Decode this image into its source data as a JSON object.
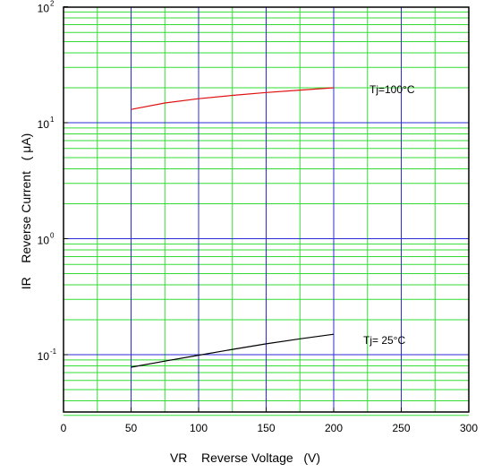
{
  "chart_data": {
    "type": "line",
    "title": "",
    "xlabel": "VR    Reverse Voltage   (V)",
    "ylabel": "IR    Reverse Current   ( μA)",
    "xlim": [
      0,
      300
    ],
    "ylim": [
      0.03,
      100
    ],
    "yscale": "log",
    "grid": true,
    "xticks": [
      "0",
      "50",
      "100",
      "150",
      "200",
      "250",
      "300"
    ],
    "ytick_base": "10",
    "ytick_exponents": [
      "-1",
      "0",
      "1",
      "2"
    ],
    "colors": {
      "major_grid": "#2b2bd6",
      "minor_grid": "#33dd33",
      "series_100C": "#e01010",
      "series_25C": "#000000"
    },
    "series": [
      {
        "name": "Tj=100°C",
        "x": [
          50,
          75,
          100,
          125,
          150,
          175,
          200
        ],
        "values": [
          13.0,
          14.8,
          16.1,
          17.2,
          18.2,
          19.1,
          20.0
        ]
      },
      {
        "name": "Tj= 25°C",
        "x": [
          50,
          75,
          100,
          125,
          150,
          175,
          200
        ],
        "values": [
          0.078,
          0.088,
          0.099,
          0.111,
          0.124,
          0.137,
          0.15
        ]
      }
    ]
  }
}
